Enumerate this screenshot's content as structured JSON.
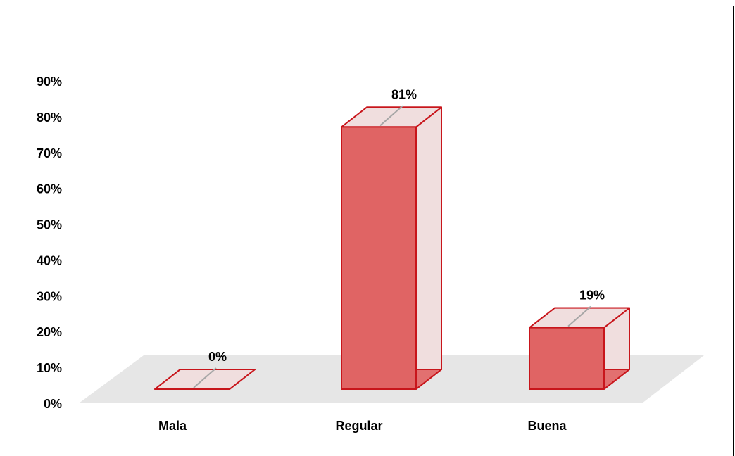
{
  "chart_data": {
    "type": "bar",
    "categories": [
      "Mala",
      "Regular",
      "Buena"
    ],
    "values": [
      0,
      81,
      19
    ],
    "data_labels": [
      "0%",
      "81%",
      "19%"
    ],
    "y_ticks": [
      "0%",
      "10%",
      "20%",
      "30%",
      "40%",
      "50%",
      "60%",
      "70%",
      "80%",
      "90%"
    ],
    "ylim": [
      0,
      90
    ],
    "grid": false,
    "legend": "none",
    "style": "3d-columns",
    "colors": {
      "bar_front": "#e06464",
      "bar_edge": "#c8151b",
      "bar_back": "#f0dede",
      "floor": "#e6e6e6",
      "leader_line": "#a6a6a6"
    }
  }
}
